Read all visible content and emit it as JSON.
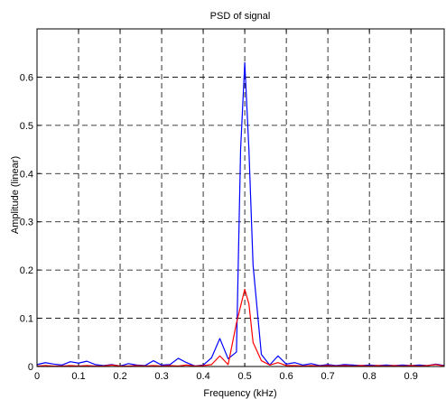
{
  "chart_data": {
    "type": "line",
    "title": "PSD of signal",
    "xlabel": "Frequency (kHz)",
    "ylabel": "Amplitude (linear)",
    "xlim": [
      0,
      0.98
    ],
    "ylim": [
      0,
      0.7
    ],
    "xticks": [
      0,
      0.1,
      0.2,
      0.3,
      0.4,
      0.5,
      0.6,
      0.7,
      0.8,
      0.9
    ],
    "xtick_labels": [
      "0",
      "0.1",
      "0.2",
      "0.3",
      "0.4",
      "0.5",
      "0.6",
      "0.7",
      "0.8",
      "0.9"
    ],
    "yticks": [
      0,
      0.1,
      0.2,
      0.3,
      0.4,
      0.5,
      0.6
    ],
    "ytick_labels": [
      "0",
      "0.1",
      "0.2",
      "0.3",
      "0.4",
      "0.5",
      "0.6"
    ],
    "grid": true,
    "grid_style": "dashed",
    "series": [
      {
        "color": "#0000ff",
        "points": [
          [
            0.0,
            0.004
          ],
          [
            0.02,
            0.008
          ],
          [
            0.04,
            0.005
          ],
          [
            0.06,
            0.003
          ],
          [
            0.08,
            0.01
          ],
          [
            0.1,
            0.007
          ],
          [
            0.12,
            0.011
          ],
          [
            0.14,
            0.004
          ],
          [
            0.16,
            0.002
          ],
          [
            0.18,
            0.004
          ],
          [
            0.2,
            0.001
          ],
          [
            0.22,
            0.006
          ],
          [
            0.24,
            0.003
          ],
          [
            0.26,
            0.002
          ],
          [
            0.28,
            0.012
          ],
          [
            0.3,
            0.003
          ],
          [
            0.32,
            0.004
          ],
          [
            0.34,
            0.017
          ],
          [
            0.36,
            0.008
          ],
          [
            0.38,
            0.001
          ],
          [
            0.4,
            0.003
          ],
          [
            0.42,
            0.018
          ],
          [
            0.44,
            0.058
          ],
          [
            0.46,
            0.016
          ],
          [
            0.48,
            0.03
          ],
          [
            0.49,
            0.45
          ],
          [
            0.5,
            0.63
          ],
          [
            0.51,
            0.45
          ],
          [
            0.52,
            0.21
          ],
          [
            0.54,
            0.025
          ],
          [
            0.56,
            0.003
          ],
          [
            0.58,
            0.022
          ],
          [
            0.6,
            0.005
          ],
          [
            0.62,
            0.008
          ],
          [
            0.64,
            0.003
          ],
          [
            0.66,
            0.006
          ],
          [
            0.68,
            0.002
          ],
          [
            0.7,
            0.004
          ],
          [
            0.72,
            0.002
          ],
          [
            0.74,
            0.004
          ],
          [
            0.76,
            0.003
          ],
          [
            0.78,
            0.002
          ],
          [
            0.8,
            0.003
          ],
          [
            0.82,
            0.002
          ],
          [
            0.84,
            0.003
          ],
          [
            0.86,
            0.002
          ],
          [
            0.88,
            0.003
          ],
          [
            0.9,
            0.002
          ],
          [
            0.92,
            0.003
          ],
          [
            0.94,
            0.002
          ],
          [
            0.96,
            0.005
          ],
          [
            0.98,
            0.002
          ]
        ]
      },
      {
        "color": "#ff0000",
        "points": [
          [
            0.0,
            0.001
          ],
          [
            0.02,
            0.002
          ],
          [
            0.04,
            0.001
          ],
          [
            0.06,
            0.001
          ],
          [
            0.08,
            0.002
          ],
          [
            0.1,
            0.001
          ],
          [
            0.12,
            0.002
          ],
          [
            0.14,
            0.001
          ],
          [
            0.16,
            0.001
          ],
          [
            0.18,
            0.003
          ],
          [
            0.2,
            0.001
          ],
          [
            0.22,
            0.001
          ],
          [
            0.24,
            0.002
          ],
          [
            0.26,
            0.001
          ],
          [
            0.28,
            0.002
          ],
          [
            0.3,
            0.001
          ],
          [
            0.32,
            0.002
          ],
          [
            0.34,
            0.001
          ],
          [
            0.36,
            0.003
          ],
          [
            0.38,
            0.001
          ],
          [
            0.4,
            0.002
          ],
          [
            0.42,
            0.004
          ],
          [
            0.44,
            0.022
          ],
          [
            0.46,
            0.004
          ],
          [
            0.48,
            0.09
          ],
          [
            0.5,
            0.16
          ],
          [
            0.51,
            0.13
          ],
          [
            0.52,
            0.05
          ],
          [
            0.54,
            0.012
          ],
          [
            0.56,
            0.003
          ],
          [
            0.58,
            0.008
          ],
          [
            0.6,
            0.002
          ],
          [
            0.62,
            0.002
          ],
          [
            0.64,
            0.001
          ],
          [
            0.66,
            0.002
          ],
          [
            0.68,
            0.001
          ],
          [
            0.7,
            0.002
          ],
          [
            0.72,
            0.001
          ],
          [
            0.74,
            0.002
          ],
          [
            0.76,
            0.001
          ],
          [
            0.78,
            0.002
          ],
          [
            0.8,
            0.001
          ],
          [
            0.82,
            0.002
          ],
          [
            0.84,
            0.001
          ],
          [
            0.86,
            0.002
          ],
          [
            0.88,
            0.001
          ],
          [
            0.9,
            0.002
          ],
          [
            0.92,
            0.001
          ],
          [
            0.94,
            0.002
          ],
          [
            0.96,
            0.004
          ],
          [
            0.98,
            0.001
          ]
        ]
      }
    ]
  }
}
